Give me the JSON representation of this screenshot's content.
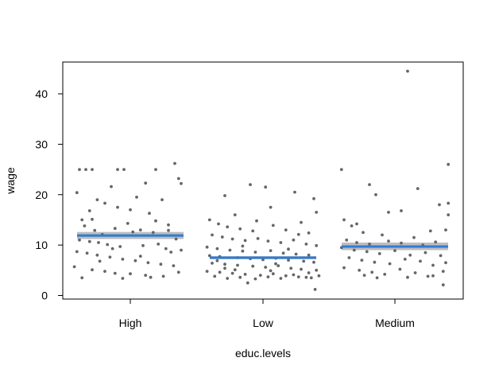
{
  "chart_data": {
    "type": "scatter",
    "xlabel": "educ.levels",
    "ylabel": "wage",
    "categories": [
      "High",
      "Low",
      "Medium"
    ],
    "ylim": [
      0,
      45
    ],
    "yticks": [
      0,
      10,
      20,
      30,
      40
    ],
    "grid": false,
    "colors": {
      "points": "#666666",
      "mean_line": "#2e7bd6",
      "ci_band": "#bdbdbd"
    },
    "groups": [
      {
        "category": "High",
        "mean": 11.9,
        "ci": [
          11.2,
          12.6
        ],
        "points": [
          [
            -0.4,
            25.0
          ],
          [
            -0.35,
            25.0
          ],
          [
            -0.3,
            25.0
          ],
          [
            -0.1,
            25.0
          ],
          [
            -0.05,
            25.0
          ],
          [
            0.2,
            25.0
          ],
          [
            0.35,
            26.2
          ],
          [
            -0.42,
            20.4
          ],
          [
            -0.2,
            18.3
          ],
          [
            -0.3,
            15.1
          ],
          [
            -0.38,
            15.0
          ],
          [
            -0.1,
            17.5
          ],
          [
            0.05,
            19.5
          ],
          [
            0.12,
            22.3
          ],
          [
            0.25,
            19.0
          ],
          [
            -0.15,
            21.6
          ],
          [
            0.38,
            23.2
          ],
          [
            0.4,
            22.2
          ],
          [
            0.15,
            16.3
          ],
          [
            -0.02,
            14.3
          ],
          [
            -0.36,
            13.8
          ],
          [
            -0.28,
            12.9
          ],
          [
            -0.22,
            12.1
          ],
          [
            -0.12,
            13.3
          ],
          [
            0.02,
            12.6
          ],
          [
            0.08,
            13.0
          ],
          [
            0.18,
            12.5
          ],
          [
            0.3,
            12.9
          ],
          [
            0.36,
            11.2
          ],
          [
            -0.4,
            11.0
          ],
          [
            -0.32,
            10.7
          ],
          [
            -0.25,
            10.5
          ],
          [
            -0.18,
            10.1
          ],
          [
            -0.08,
            9.7
          ],
          [
            0.1,
            9.9
          ],
          [
            0.22,
            10.2
          ],
          [
            0.28,
            9.3
          ],
          [
            0.4,
            9.0
          ],
          [
            -0.42,
            8.7
          ],
          [
            -0.34,
            8.4
          ],
          [
            -0.26,
            8.0
          ],
          [
            -0.16,
            7.6
          ],
          [
            -0.06,
            7.2
          ],
          [
            0.04,
            6.9
          ],
          [
            0.14,
            6.5
          ],
          [
            0.24,
            6.2
          ],
          [
            0.34,
            5.9
          ],
          [
            -0.44,
            5.7
          ],
          [
            -0.3,
            5.1
          ],
          [
            -0.2,
            4.8
          ],
          [
            -0.12,
            4.4
          ],
          [
            0.0,
            4.3
          ],
          [
            0.12,
            4.0
          ],
          [
            0.26,
            3.8
          ],
          [
            -0.38,
            3.5
          ],
          [
            -0.06,
            3.4
          ],
          [
            0.16,
            3.6
          ],
          [
            0.38,
            4.6
          ],
          [
            -0.24,
            6.8
          ],
          [
            0.08,
            7.8
          ],
          [
            0.32,
            8.6
          ],
          [
            -0.14,
            9.3
          ],
          [
            0.2,
            14.8
          ],
          [
            -0.32,
            16.8
          ],
          [
            0.3,
            14.0
          ],
          [
            -0.26,
            19.0
          ],
          [
            0.0,
            17.0
          ]
        ]
      },
      {
        "category": "Low",
        "mean": 7.5,
        "ci": [
          7.2,
          7.8
        ],
        "points": [
          [
            -0.1,
            22.0
          ],
          [
            0.02,
            21.5
          ],
          [
            0.25,
            20.5
          ],
          [
            -0.3,
            19.8
          ],
          [
            0.4,
            19.2
          ],
          [
            0.42,
            16.5
          ],
          [
            -0.22,
            16.0
          ],
          [
            0.06,
            17.5
          ],
          [
            -0.42,
            15.0
          ],
          [
            -0.35,
            14.2
          ],
          [
            -0.28,
            13.6
          ],
          [
            -0.18,
            13.2
          ],
          [
            -0.05,
            14.8
          ],
          [
            0.08,
            13.9
          ],
          [
            0.18,
            13.0
          ],
          [
            0.3,
            14.5
          ],
          [
            0.36,
            12.4
          ],
          [
            -0.4,
            12.0
          ],
          [
            -0.32,
            11.6
          ],
          [
            -0.24,
            11.2
          ],
          [
            -0.14,
            10.9
          ],
          [
            -0.04,
            11.3
          ],
          [
            0.04,
            10.8
          ],
          [
            0.14,
            10.5
          ],
          [
            0.24,
            11.0
          ],
          [
            0.34,
            10.2
          ],
          [
            0.42,
            9.9
          ],
          [
            -0.44,
            9.6
          ],
          [
            -0.36,
            9.3
          ],
          [
            -0.26,
            9.0
          ],
          [
            -0.16,
            8.8
          ],
          [
            -0.06,
            8.6
          ],
          [
            0.06,
            8.9
          ],
          [
            0.16,
            8.4
          ],
          [
            0.26,
            8.2
          ],
          [
            0.36,
            8.0
          ],
          [
            -0.42,
            7.9
          ],
          [
            -0.34,
            7.7
          ],
          [
            -0.2,
            7.5
          ],
          [
            -0.1,
            7.3
          ],
          [
            0.0,
            7.1
          ],
          [
            0.1,
            7.4
          ],
          [
            0.2,
            7.0
          ],
          [
            0.32,
            6.8
          ],
          [
            0.4,
            6.6
          ],
          [
            -0.4,
            6.4
          ],
          [
            -0.3,
            6.2
          ],
          [
            -0.2,
            6.0
          ],
          [
            -0.08,
            5.8
          ],
          [
            0.02,
            5.6
          ],
          [
            0.12,
            5.9
          ],
          [
            0.22,
            5.4
          ],
          [
            0.3,
            5.2
          ],
          [
            0.42,
            5.0
          ],
          [
            -0.44,
            4.8
          ],
          [
            -0.34,
            4.6
          ],
          [
            -0.24,
            4.4
          ],
          [
            -0.14,
            4.2
          ],
          [
            -0.02,
            4.0
          ],
          [
            0.08,
            4.3
          ],
          [
            0.18,
            3.9
          ],
          [
            0.28,
            3.7
          ],
          [
            0.38,
            3.5
          ],
          [
            -0.38,
            3.8
          ],
          [
            -0.28,
            3.4
          ],
          [
            -0.18,
            3.6
          ],
          [
            -0.06,
            3.3
          ],
          [
            0.04,
            3.7
          ],
          [
            0.14,
            3.4
          ],
          [
            0.24,
            4.1
          ],
          [
            0.34,
            3.6
          ],
          [
            0.44,
            3.9
          ],
          [
            -0.12,
            2.5
          ],
          [
            0.41,
            1.2
          ],
          [
            -0.3,
            5.4
          ],
          [
            0.1,
            6.3
          ],
          [
            -0.16,
            9.8
          ],
          [
            0.28,
            12.1
          ],
          [
            -0.08,
            12.8
          ],
          [
            0.2,
            9.2
          ],
          [
            -0.36,
            6.9
          ],
          [
            0.36,
            4.5
          ],
          [
            -0.22,
            5.1
          ],
          [
            0.06,
            4.9
          ]
        ]
      },
      {
        "category": "Medium",
        "mean": 9.7,
        "ci": [
          9.0,
          10.5
        ],
        "points": [
          [
            0.1,
            44.5
          ],
          [
            -0.42,
            25.0
          ],
          [
            0.42,
            26.0
          ],
          [
            -0.2,
            22.0
          ],
          [
            0.18,
            21.2
          ],
          [
            -0.15,
            20.0
          ],
          [
            0.42,
            18.3
          ],
          [
            0.35,
            18.0
          ],
          [
            -0.05,
            16.5
          ],
          [
            0.05,
            16.8
          ],
          [
            0.42,
            16.0
          ],
          [
            -0.4,
            15.0
          ],
          [
            -0.3,
            14.2
          ],
          [
            -0.34,
            13.8
          ],
          [
            -0.25,
            12.5
          ],
          [
            -0.1,
            12.0
          ],
          [
            0.15,
            11.5
          ],
          [
            0.28,
            12.8
          ],
          [
            0.4,
            13.0
          ],
          [
            -0.38,
            11.0
          ],
          [
            -0.3,
            10.5
          ],
          [
            -0.2,
            10.2
          ],
          [
            -0.05,
            10.8
          ],
          [
            0.05,
            10.4
          ],
          [
            0.22,
            10.0
          ],
          [
            0.32,
            10.6
          ],
          [
            -0.42,
            9.5
          ],
          [
            -0.32,
            9.0
          ],
          [
            -0.22,
            8.7
          ],
          [
            -0.12,
            8.3
          ],
          [
            0.0,
            8.9
          ],
          [
            0.12,
            8.0
          ],
          [
            0.24,
            8.5
          ],
          [
            0.36,
            7.9
          ],
          [
            -0.36,
            7.5
          ],
          [
            -0.26,
            7.0
          ],
          [
            -0.16,
            6.6
          ],
          [
            -0.04,
            6.3
          ],
          [
            0.08,
            7.2
          ],
          [
            0.2,
            6.8
          ],
          [
            0.3,
            6.0
          ],
          [
            0.4,
            6.5
          ],
          [
            -0.4,
            5.5
          ],
          [
            -0.28,
            5.0
          ],
          [
            -0.18,
            4.6
          ],
          [
            -0.08,
            4.2
          ],
          [
            0.04,
            5.2
          ],
          [
            0.16,
            4.5
          ],
          [
            0.26,
            3.8
          ],
          [
            0.38,
            4.8
          ],
          [
            -0.24,
            4.0
          ],
          [
            0.1,
            3.6
          ],
          [
            -0.14,
            3.5
          ],
          [
            0.3,
            3.9
          ],
          [
            0.38,
            2.1
          ]
        ]
      }
    ]
  }
}
